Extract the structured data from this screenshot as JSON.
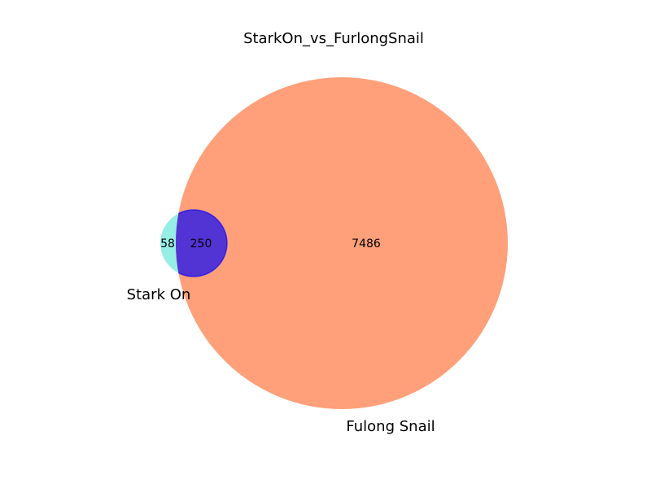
{
  "title": "StarkOn_vs_FurlongSnail",
  "sets": [
    {
      "name": "Stark On",
      "color": "#40E0D0",
      "opacity": 0.55
    },
    {
      "name": "Fulong Snail",
      "color": "#FFA07A",
      "opacity": 1.0
    }
  ],
  "overlap_color": "#0000FF",
  "regions": {
    "only_a": "58",
    "both": "250",
    "only_b": "7486"
  }
}
